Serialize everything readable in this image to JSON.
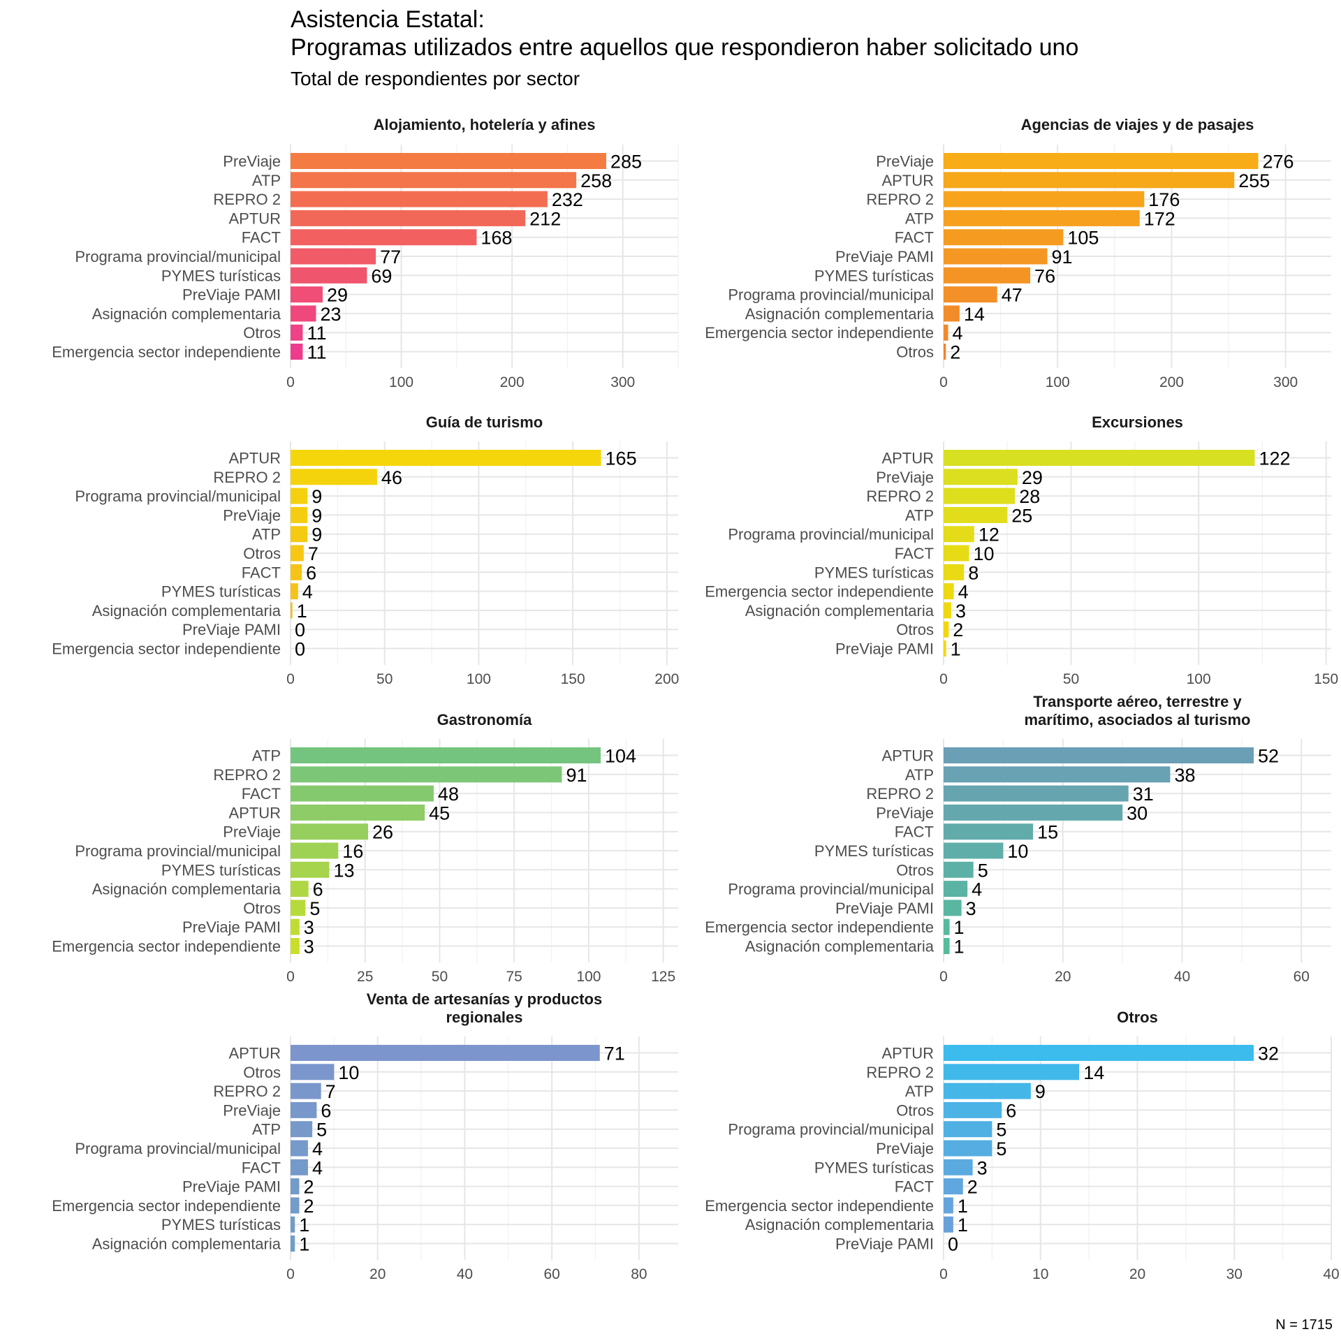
{
  "header": {
    "title_line1": "Asistencia Estatal:",
    "title_line2": "Programas utilizados entre aquellos que respondieron haber solicitado uno",
    "subtitle": "Total de respondientes por sector",
    "caption": "N = 1715"
  },
  "chart_data": [
    {
      "type": "bar",
      "orientation": "horizontal",
      "title_lines": [
        "Alojamiento, hotelería y afines"
      ],
      "categories": [
        "PreViaje",
        "ATP",
        "REPRO 2",
        "APTUR",
        "FACT",
        "Programa provincial/municipal",
        "PYMES turísticas",
        "PreViaje PAMI",
        "Asignación complementaria",
        "Otros",
        "Emergencia sector independiente"
      ],
      "values": [
        285,
        258,
        232,
        212,
        168,
        77,
        69,
        29,
        23,
        11,
        11
      ],
      "xlim": [
        0,
        350
      ],
      "ticks": [
        0,
        100,
        200,
        300
      ],
      "color_start": "#f47b42",
      "color_end": "#ee3b8c"
    },
    {
      "type": "bar",
      "orientation": "horizontal",
      "title_lines": [
        "Agencias de viajes y de pasajes"
      ],
      "categories": [
        "PreViaje",
        "APTUR",
        "REPRO 2",
        "ATP",
        "FACT",
        "PreViaje PAMI",
        "PYMES turísticas",
        "Programa provincial/municipal",
        "Asignación complementaria",
        "Emergencia sector independiente",
        "Otros"
      ],
      "values": [
        276,
        255,
        176,
        172,
        105,
        91,
        76,
        47,
        14,
        4,
        2
      ],
      "xlim": [
        0,
        340
      ],
      "ticks": [
        0,
        100,
        200,
        300
      ],
      "color_start": "#f8ac17",
      "color_end": "#f1842e"
    },
    {
      "type": "bar",
      "orientation": "horizontal",
      "title_lines": [
        "Guía de turismo"
      ],
      "categories": [
        "APTUR",
        "REPRO 2",
        "Programa provincial/municipal",
        "PreViaje",
        "ATP",
        "Otros",
        "FACT",
        "PYMES turísticas",
        "Asignación complementaria",
        "PreViaje PAMI",
        "Emergencia sector independiente"
      ],
      "values": [
        165,
        46,
        9,
        9,
        9,
        7,
        6,
        4,
        1,
        0,
        0
      ],
      "xlim": [
        0,
        206
      ],
      "ticks": [
        0,
        50,
        100,
        150,
        200
      ],
      "color_start": "#f5d60a",
      "color_end": "#f6b81f"
    },
    {
      "type": "bar",
      "orientation": "horizontal",
      "title_lines": [
        "Excursiones"
      ],
      "categories": [
        "APTUR",
        "PreViaje",
        "REPRO 2",
        "ATP",
        "Programa provincial/municipal",
        "FACT",
        "PYMES turísticas",
        "Emergencia sector independiente",
        "Asignación complementaria",
        "Otros",
        "PreViaje PAMI"
      ],
      "values": [
        122,
        29,
        28,
        25,
        12,
        10,
        8,
        4,
        3,
        2,
        1
      ],
      "xlim": [
        0,
        152
      ],
      "ticks": [
        0,
        50,
        100,
        150
      ],
      "color_start": "#d8e022",
      "color_end": "#f5d60a"
    },
    {
      "type": "bar",
      "orientation": "horizontal",
      "title_lines": [
        "Gastronomía"
      ],
      "categories": [
        "ATP",
        "REPRO 2",
        "FACT",
        "APTUR",
        "PreViaje",
        "Programa provincial/municipal",
        "PYMES turísticas",
        "Asignación complementaria",
        "Otros",
        "PreViaje PAMI",
        "Emergencia sector independiente"
      ],
      "values": [
        104,
        91,
        48,
        45,
        26,
        16,
        13,
        6,
        5,
        3,
        3
      ],
      "xlim": [
        0,
        130
      ],
      "ticks": [
        0,
        25,
        50,
        75,
        100,
        125
      ],
      "color_start": "#74c47f",
      "color_end": "#c8df2a"
    },
    {
      "type": "bar",
      "orientation": "horizontal",
      "title_lines": [
        "Transporte aéreo, terrestre y",
        "marítimo, asociados al turismo"
      ],
      "categories": [
        "APTUR",
        "ATP",
        "REPRO 2",
        "PreViaje",
        "FACT",
        "PYMES turísticas",
        "Otros",
        "Programa provincial/municipal",
        "PreViaje PAMI",
        "Emergencia sector independiente",
        "Asignación complementaria"
      ],
      "values": [
        52,
        38,
        31,
        30,
        15,
        10,
        5,
        4,
        3,
        1,
        1
      ],
      "xlim": [
        0,
        65
      ],
      "ticks": [
        0,
        20,
        40,
        60
      ],
      "color_start": "#6a9fb5",
      "color_end": "#55bc9c"
    },
    {
      "type": "bar",
      "orientation": "horizontal",
      "title_lines": [
        "Venta de artesanías y productos",
        "regionales"
      ],
      "categories": [
        "APTUR",
        "Otros",
        "REPRO 2",
        "PreViaje",
        "ATP",
        "Programa provincial/municipal",
        "FACT",
        "PreViaje PAMI",
        "Emergencia sector independiente",
        "PYMES turísticas",
        "Asignación complementaria"
      ],
      "values": [
        71,
        10,
        7,
        6,
        5,
        4,
        4,
        2,
        2,
        1,
        1
      ],
      "xlim": [
        0,
        89
      ],
      "ticks": [
        0,
        20,
        40,
        60,
        80
      ],
      "color_start": "#7c95cc",
      "color_end": "#6f9ec8"
    },
    {
      "type": "bar",
      "orientation": "horizontal",
      "title_lines": [
        "Otros"
      ],
      "categories": [
        "APTUR",
        "REPRO 2",
        "ATP",
        "Otros",
        "Programa provincial/municipal",
        "PreViaje",
        "PYMES turísticas",
        "FACT",
        "Emergencia sector independiente",
        "Asignación complementaria",
        "PreViaje PAMI"
      ],
      "values": [
        32,
        14,
        9,
        6,
        5,
        5,
        3,
        2,
        1,
        1,
        0
      ],
      "xlim": [
        0,
        40
      ],
      "ticks": [
        0,
        10,
        20,
        30,
        40
      ],
      "color_start": "#3bbcec",
      "color_end": "#6f9ed8"
    }
  ]
}
